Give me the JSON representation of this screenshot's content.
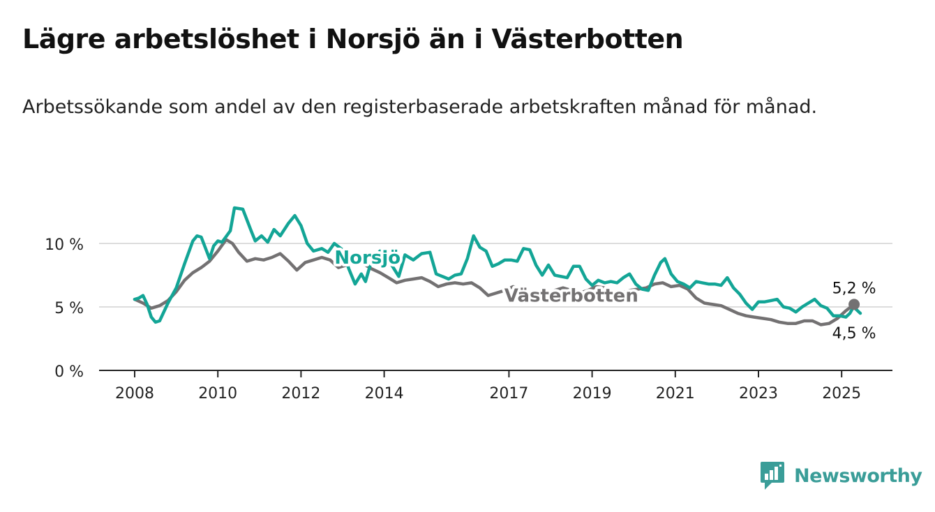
{
  "title": "Lägre arbetslöshet i Norsjö än i Västerbotten",
  "subtitle": "Arbetssökande som andel av den registerbaserade arbetskraften månad för månad.",
  "brand": {
    "name": "Newsworthy",
    "color": "#3a9d98",
    "icon": "newsworthy-bar-chart-logo-icon"
  },
  "colors": {
    "norsjo": "#13a596",
    "vasterbotten": "#737172",
    "grid": "#dddddd",
    "axis": "#222222"
  },
  "chart_data": {
    "type": "line",
    "x_unit": "year (decimal, monthly observations)",
    "y_unit": "%",
    "xlim": [
      2005.8,
      2026.2
    ],
    "ylim": [
      0,
      13
    ],
    "y_ticks": [
      {
        "value": 0,
        "label": "0 %"
      },
      {
        "value": 5,
        "label": "5 %"
      },
      {
        "value": 10,
        "label": "10 %"
      }
    ],
    "x_ticks": [
      {
        "value": 2008,
        "label": "2008"
      },
      {
        "value": 2010,
        "label": "2010"
      },
      {
        "value": 2012,
        "label": "2012"
      },
      {
        "value": 2014,
        "label": "2014"
      },
      {
        "value": 2017,
        "label": "2017"
      },
      {
        "value": 2019,
        "label": "2019"
      },
      {
        "value": 2021,
        "label": "2021"
      },
      {
        "value": 2023,
        "label": "2023"
      },
      {
        "value": 2025,
        "label": "2025"
      }
    ],
    "grid": "horizontal",
    "legend": "inline labels on lines",
    "series": [
      {
        "name": "Västerbotten",
        "color": "#737172",
        "label_anchor": [
          2018.5,
          5.4
        ],
        "end_label": "5,2 %",
        "points": [
          [
            2008.0,
            5.6
          ],
          [
            2008.2,
            5.3
          ],
          [
            2008.4,
            4.9
          ],
          [
            2008.6,
            5.1
          ],
          [
            2008.8,
            5.5
          ],
          [
            2009.0,
            6.2
          ],
          [
            2009.2,
            7.1
          ],
          [
            2009.4,
            7.7
          ],
          [
            2009.6,
            8.1
          ],
          [
            2009.8,
            8.6
          ],
          [
            2010.0,
            9.4
          ],
          [
            2010.2,
            10.3
          ],
          [
            2010.35,
            10.0
          ],
          [
            2010.5,
            9.3
          ],
          [
            2010.7,
            8.6
          ],
          [
            2010.9,
            8.8
          ],
          [
            2011.1,
            8.7
          ],
          [
            2011.3,
            8.9
          ],
          [
            2011.5,
            9.2
          ],
          [
            2011.7,
            8.6
          ],
          [
            2011.9,
            7.9
          ],
          [
            2012.1,
            8.5
          ],
          [
            2012.3,
            8.7
          ],
          [
            2012.5,
            8.9
          ],
          [
            2012.7,
            8.7
          ],
          [
            2012.9,
            8.1
          ],
          [
            2013.1,
            8.3
          ],
          [
            2013.3,
            8.6
          ],
          [
            2013.5,
            8.4
          ],
          [
            2013.7,
            8.0
          ],
          [
            2013.9,
            7.7
          ],
          [
            2014.1,
            7.3
          ],
          [
            2014.3,
            6.9
          ],
          [
            2014.5,
            7.1
          ],
          [
            2014.7,
            7.2
          ],
          [
            2014.9,
            7.3
          ],
          [
            2015.1,
            7.0
          ],
          [
            2015.3,
            6.6
          ],
          [
            2015.5,
            6.8
          ],
          [
            2015.7,
            6.9
          ],
          [
            2015.9,
            6.8
          ],
          [
            2016.1,
            6.9
          ],
          [
            2016.3,
            6.5
          ],
          [
            2016.5,
            5.9
          ],
          [
            2016.7,
            6.1
          ],
          [
            2016.9,
            6.3
          ],
          [
            2017.1,
            6.6
          ],
          [
            2017.3,
            6.4
          ],
          [
            2017.5,
            6.1
          ],
          [
            2017.7,
            5.8
          ],
          [
            2017.9,
            6.0
          ],
          [
            2018.1,
            6.3
          ],
          [
            2018.3,
            6.5
          ],
          [
            2018.5,
            6.3
          ],
          [
            2018.7,
            6.1
          ],
          [
            2018.9,
            6.3
          ],
          [
            2019.1,
            6.6
          ],
          [
            2019.3,
            6.5
          ],
          [
            2019.5,
            6.2
          ],
          [
            2019.7,
            6.1
          ],
          [
            2019.9,
            6.3
          ],
          [
            2020.1,
            6.4
          ],
          [
            2020.3,
            6.5
          ],
          [
            2020.5,
            6.8
          ],
          [
            2020.7,
            6.9
          ],
          [
            2020.9,
            6.6
          ],
          [
            2021.1,
            6.7
          ],
          [
            2021.3,
            6.4
          ],
          [
            2021.5,
            5.7
          ],
          [
            2021.7,
            5.3
          ],
          [
            2021.9,
            5.2
          ],
          [
            2022.1,
            5.1
          ],
          [
            2022.3,
            4.8
          ],
          [
            2022.5,
            4.5
          ],
          [
            2022.7,
            4.3
          ],
          [
            2022.9,
            4.2
          ],
          [
            2023.1,
            4.1
          ],
          [
            2023.3,
            4.0
          ],
          [
            2023.5,
            3.8
          ],
          [
            2023.7,
            3.7
          ],
          [
            2023.9,
            3.7
          ],
          [
            2024.1,
            3.9
          ],
          [
            2024.3,
            3.9
          ],
          [
            2024.5,
            3.6
          ],
          [
            2024.7,
            3.7
          ],
          [
            2024.9,
            4.1
          ],
          [
            2025.1,
            4.7
          ],
          [
            2025.3,
            5.2
          ]
        ]
      },
      {
        "name": "Norsjö",
        "color": "#13a596",
        "label_anchor": [
          2013.6,
          8.4
        ],
        "end_label": "4,5 %",
        "points": [
          [
            2008.0,
            5.6
          ],
          [
            2008.1,
            5.7
          ],
          [
            2008.2,
            5.9
          ],
          [
            2008.3,
            5.2
          ],
          [
            2008.4,
            4.2
          ],
          [
            2008.5,
            3.8
          ],
          [
            2008.6,
            3.9
          ],
          [
            2008.8,
            5.3
          ],
          [
            2009.0,
            6.5
          ],
          [
            2009.2,
            8.4
          ],
          [
            2009.4,
            10.2
          ],
          [
            2009.5,
            10.6
          ],
          [
            2009.6,
            10.5
          ],
          [
            2009.8,
            8.8
          ],
          [
            2009.9,
            9.8
          ],
          [
            2010.0,
            10.2
          ],
          [
            2010.1,
            10.1
          ],
          [
            2010.3,
            11.0
          ],
          [
            2010.4,
            12.8
          ],
          [
            2010.6,
            12.7
          ],
          [
            2010.8,
            11.0
          ],
          [
            2010.9,
            10.2
          ],
          [
            2011.05,
            10.6
          ],
          [
            2011.2,
            10.1
          ],
          [
            2011.35,
            11.1
          ],
          [
            2011.5,
            10.6
          ],
          [
            2011.7,
            11.6
          ],
          [
            2011.85,
            12.2
          ],
          [
            2012.0,
            11.4
          ],
          [
            2012.15,
            10.0
          ],
          [
            2012.3,
            9.4
          ],
          [
            2012.5,
            9.6
          ],
          [
            2012.65,
            9.3
          ],
          [
            2012.8,
            10.0
          ],
          [
            2013.0,
            9.5
          ],
          [
            2013.15,
            8.0
          ],
          [
            2013.3,
            6.8
          ],
          [
            2013.45,
            7.6
          ],
          [
            2013.55,
            7.0
          ],
          [
            2013.7,
            8.7
          ],
          [
            2013.9,
            9.4
          ],
          [
            2014.05,
            9.0
          ],
          [
            2014.2,
            8.2
          ],
          [
            2014.35,
            7.4
          ],
          [
            2014.5,
            9.1
          ],
          [
            2014.7,
            8.7
          ],
          [
            2014.9,
            9.2
          ],
          [
            2015.1,
            9.3
          ],
          [
            2015.25,
            7.6
          ],
          [
            2015.4,
            7.4
          ],
          [
            2015.55,
            7.2
          ],
          [
            2015.7,
            7.5
          ],
          [
            2015.85,
            7.6
          ],
          [
            2016.0,
            8.8
          ],
          [
            2016.15,
            10.6
          ],
          [
            2016.3,
            9.7
          ],
          [
            2016.45,
            9.4
          ],
          [
            2016.6,
            8.2
          ],
          [
            2016.75,
            8.4
          ],
          [
            2016.9,
            8.7
          ],
          [
            2017.05,
            8.7
          ],
          [
            2017.2,
            8.6
          ],
          [
            2017.35,
            9.6
          ],
          [
            2017.5,
            9.5
          ],
          [
            2017.65,
            8.3
          ],
          [
            2017.8,
            7.5
          ],
          [
            2017.95,
            8.3
          ],
          [
            2018.1,
            7.5
          ],
          [
            2018.25,
            7.4
          ],
          [
            2018.4,
            7.3
          ],
          [
            2018.55,
            8.2
          ],
          [
            2018.7,
            8.2
          ],
          [
            2018.85,
            7.2
          ],
          [
            2019.0,
            6.7
          ],
          [
            2019.15,
            7.1
          ],
          [
            2019.3,
            6.9
          ],
          [
            2019.45,
            7.0
          ],
          [
            2019.6,
            6.9
          ],
          [
            2019.75,
            7.3
          ],
          [
            2019.9,
            7.6
          ],
          [
            2020.05,
            6.8
          ],
          [
            2020.2,
            6.4
          ],
          [
            2020.35,
            6.3
          ],
          [
            2020.5,
            7.5
          ],
          [
            2020.65,
            8.5
          ],
          [
            2020.75,
            8.8
          ],
          [
            2020.9,
            7.6
          ],
          [
            2021.05,
            7.0
          ],
          [
            2021.2,
            6.8
          ],
          [
            2021.35,
            6.5
          ],
          [
            2021.5,
            7.0
          ],
          [
            2021.65,
            6.9
          ],
          [
            2021.8,
            6.8
          ],
          [
            2021.95,
            6.8
          ],
          [
            2022.1,
            6.7
          ],
          [
            2022.25,
            7.3
          ],
          [
            2022.4,
            6.5
          ],
          [
            2022.55,
            6.0
          ],
          [
            2022.7,
            5.3
          ],
          [
            2022.85,
            4.8
          ],
          [
            2023.0,
            5.4
          ],
          [
            2023.15,
            5.4
          ],
          [
            2023.3,
            5.5
          ],
          [
            2023.45,
            5.6
          ],
          [
            2023.6,
            5.0
          ],
          [
            2023.75,
            4.9
          ],
          [
            2023.9,
            4.6
          ],
          [
            2024.05,
            5.0
          ],
          [
            2024.2,
            5.3
          ],
          [
            2024.35,
            5.6
          ],
          [
            2024.5,
            5.1
          ],
          [
            2024.65,
            4.9
          ],
          [
            2024.8,
            4.3
          ],
          [
            2024.95,
            4.3
          ],
          [
            2025.1,
            4.2
          ],
          [
            2025.2,
            4.5
          ],
          [
            2025.3,
            5.1
          ],
          [
            2025.35,
            4.8
          ],
          [
            2025.45,
            4.5
          ]
        ]
      }
    ]
  }
}
